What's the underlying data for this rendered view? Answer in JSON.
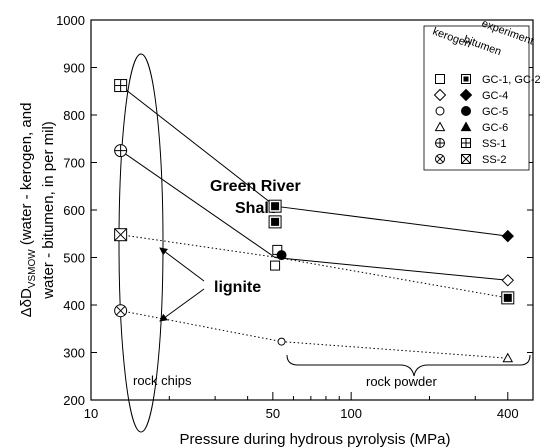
{
  "chart_data": {
    "type": "scatter",
    "x_scale": "log",
    "xlim": [
      10,
      500
    ],
    "ylim": [
      200,
      1000
    ],
    "x_ticks": [
      10,
      50,
      100,
      400
    ],
    "y_ticks": [
      200,
      300,
      400,
      500,
      600,
      700,
      800,
      900,
      1000
    ],
    "xlabel": "Pressure during hydrous pyrolysis (MPa)",
    "ylabel_line1": "ΔδD",
    "ylabel_sub": "VSMOW",
    "ylabel_line1_rest": " (water - kerogen, and",
    "ylabel_line2": "water - bitumen, in per mil)",
    "legend": {
      "column_headers": [
        "kerogen",
        "bitumen",
        "experiment"
      ],
      "entries": [
        {
          "label": "GC-1, GC-2",
          "kerogen_marker": "square-open",
          "bitumen_marker": "square-filled"
        },
        {
          "label": "GC-4",
          "kerogen_marker": "diamond-open",
          "bitumen_marker": "diamond-filled"
        },
        {
          "label": "GC-5",
          "kerogen_marker": "circle-open",
          "bitumen_marker": "circle-filled"
        },
        {
          "label": "GC-6",
          "kerogen_marker": "triangle-open",
          "bitumen_marker": "triangle-filled"
        },
        {
          "label": "SS-1",
          "kerogen_marker": "circle-plus",
          "bitumen_marker": "square-plus"
        },
        {
          "label": "SS-2",
          "kerogen_marker": "circle-x",
          "bitumen_marker": "square-x"
        }
      ]
    },
    "series": [
      {
        "marker": "circle-plus",
        "x": 13,
        "y": 725
      },
      {
        "marker": "square-plus",
        "x": 13,
        "y": 862
      },
      {
        "marker": "square-x",
        "x": 13,
        "y": 548
      },
      {
        "marker": "circle-x",
        "x": 13,
        "y": 388
      },
      {
        "marker": "square-open",
        "x": 51,
        "y": 483
      },
      {
        "marker": "square-open",
        "x": 52,
        "y": 516
      },
      {
        "marker": "square-filled",
        "x": 51,
        "y": 608
      },
      {
        "marker": "square-filled",
        "x": 51,
        "y": 575
      },
      {
        "marker": "circle-filled",
        "x": 54,
        "y": 505
      },
      {
        "marker": "circle-open",
        "x": 54,
        "y": 323
      },
      {
        "marker": "diamond-filled",
        "x": 400,
        "y": 545
      },
      {
        "marker": "diamond-open",
        "x": 400,
        "y": 452
      },
      {
        "marker": "square-filled",
        "x": 400,
        "y": 415
      },
      {
        "marker": "triangle-open",
        "x": 400,
        "y": 288
      }
    ],
    "lines": [
      {
        "style": "solid",
        "points": [
          [
            13,
            862
          ],
          [
            51,
            608
          ],
          [
            400,
            545
          ]
        ]
      },
      {
        "style": "solid",
        "points": [
          [
            13,
            725
          ],
          [
            51,
            500
          ],
          [
            400,
            452
          ]
        ]
      },
      {
        "style": "dotted",
        "points": [
          [
            13,
            548
          ],
          [
            52,
            500
          ],
          [
            400,
            415
          ]
        ]
      },
      {
        "style": "dotted",
        "points": [
          [
            13,
            388
          ],
          [
            54,
            323
          ],
          [
            400,
            288
          ]
        ]
      }
    ],
    "annotations": {
      "green_river_1": "Green River",
      "green_river_2": "Shale",
      "lignite": "lignite",
      "rock_chips": "rock chips",
      "rock_powder": "rock powder"
    }
  }
}
